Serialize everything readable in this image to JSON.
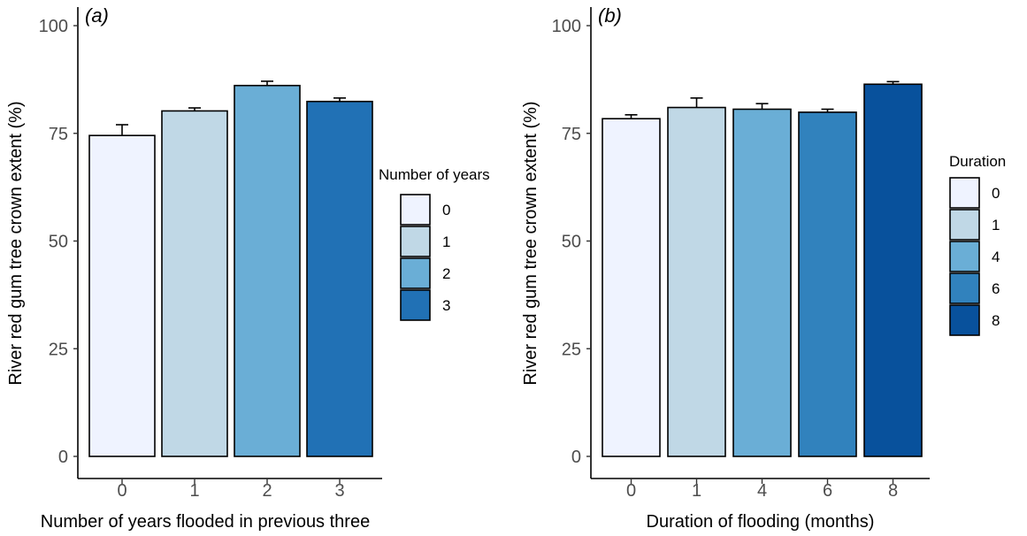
{
  "chart_data": [
    {
      "type": "bar",
      "panel_label": "(a)",
      "categories": [
        "0",
        "1",
        "2",
        "3"
      ],
      "values": [
        74.5,
        80.2,
        86.1,
        82.4
      ],
      "error_upper": [
        77.0,
        80.9,
        87.1,
        83.2
      ],
      "colors": [
        "#eff3ff",
        "#c0d8e6",
        "#6aaed6",
        "#2171b5"
      ],
      "xlabel": "Number of years flooded in previous three",
      "ylabel": "River red gum tree crown extent (%)",
      "ylim": [
        0,
        100
      ],
      "yticks": [
        0,
        25,
        50,
        75,
        100
      ],
      "legend_title": "Number of years",
      "legend_labels": [
        "0",
        "1",
        "2",
        "3"
      ],
      "legend_position": "right",
      "grid": false
    },
    {
      "type": "bar",
      "panel_label": "(b)",
      "categories": [
        "0",
        "1",
        "4",
        "6",
        "8"
      ],
      "values": [
        78.4,
        81.0,
        80.6,
        79.9,
        86.4
      ],
      "error_upper": [
        79.3,
        83.2,
        81.9,
        80.6,
        87.0
      ],
      "colors": [
        "#eff3ff",
        "#c0d8e6",
        "#6aaed6",
        "#3182bd",
        "#08519c"
      ],
      "xlabel": "Duration of flooding (months)",
      "ylabel": "River red gum tree crown extent (%)",
      "ylim": [
        0,
        100
      ],
      "yticks": [
        0,
        25,
        50,
        75,
        100
      ],
      "legend_title": "Duration",
      "legend_labels": [
        "0",
        "1",
        "4",
        "6",
        "8"
      ],
      "legend_position": "right",
      "grid": false
    }
  ]
}
